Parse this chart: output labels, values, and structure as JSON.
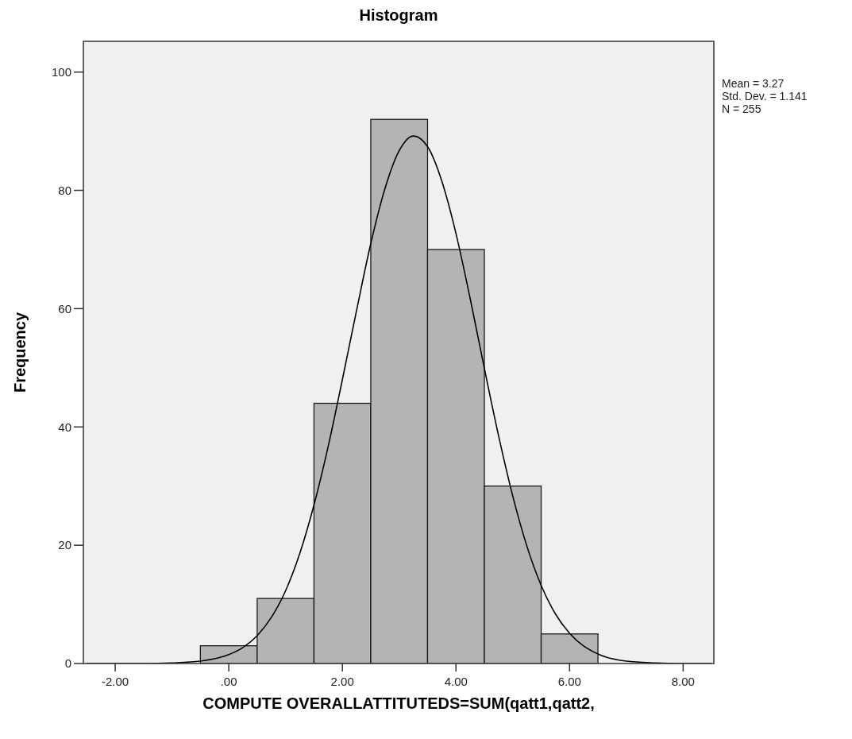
{
  "chart_data": {
    "type": "histogram",
    "title": "Histogram",
    "xlabel": "COMPUTE OVERALLATTITUTEDS=SUM(qatt1,qatt2,",
    "ylabel": "Frequency",
    "bins": [
      -0.5,
      0.5,
      1.5,
      2.5,
      3.5,
      4.5,
      5.5,
      6.5
    ],
    "series": [
      {
        "color": "#b4b4b4",
        "values": [
          3,
          11,
          44,
          92,
          70,
          30,
          5
        ]
      },
      {
        "type": "line",
        "color": "#000000",
        "x": [
          -2.5,
          -2,
          -1.5,
          -1,
          -0.5,
          0,
          0.25,
          0.5,
          0.75,
          1,
          1.25,
          1.5,
          1.75,
          2,
          2.25,
          2.5,
          2.75,
          3,
          3.25,
          3.5,
          3.75,
          4,
          4.25,
          4.5,
          4.75,
          5,
          5.25,
          5.5,
          5.75,
          6,
          6.5,
          7,
          7.5,
          8,
          8.5
        ],
        "values": [
          0,
          0,
          0,
          0.1,
          0.4,
          1.5,
          2.7,
          4.7,
          7.8,
          12.3,
          18.6,
          26.8,
          36.7,
          48,
          59.7,
          71,
          80.3,
          86.7,
          89.2,
          87.4,
          81.6,
          72.7,
          61.7,
          49.9,
          38.5,
          28.3,
          19.8,
          13.2,
          8.4,
          5.1,
          1.6,
          0.4,
          0.1,
          0,
          0
        ]
      }
    ],
    "xlim": [
      -2.56,
      8.54
    ],
    "ylim": [
      0,
      105.2
    ],
    "xticks": [
      {
        "value": -2,
        "label": "-2.00"
      },
      {
        "value": 0,
        "label": ".00"
      },
      {
        "value": 2,
        "label": "2.00"
      },
      {
        "value": 4,
        "label": "4.00"
      },
      {
        "value": 6,
        "label": "6.00"
      },
      {
        "value": 8,
        "label": "8.00"
      }
    ],
    "yticks": [
      0,
      20,
      40,
      60,
      80,
      100
    ],
    "annotations": [
      "Mean = 3.27",
      "Std. Dev. = 1.141",
      "N = 255"
    ]
  }
}
